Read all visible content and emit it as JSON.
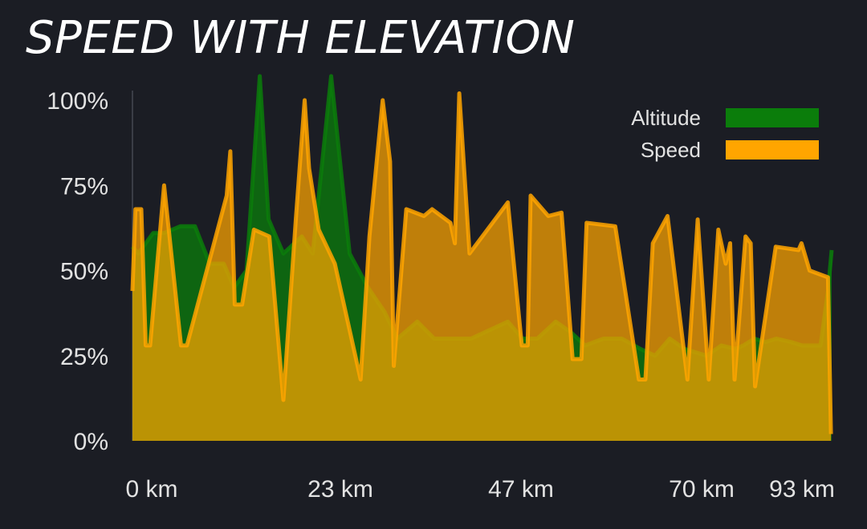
{
  "chart_data": {
    "type": "area",
    "title": "SPEED WITH ELEVATION",
    "y_ticks": [
      "0%",
      "25%",
      "50%",
      "75%",
      "100%"
    ],
    "x_ticks": [
      "0 km",
      "23 km",
      "47 km",
      "70 km",
      "93 km"
    ],
    "ylim": [
      0,
      100
    ],
    "xlim": [
      0,
      95
    ],
    "legend_position": "top-right",
    "series": [
      {
        "name": "Altitude",
        "color": "#0b7d0b",
        "x": [
          0,
          0.8,
          2.8,
          4.3,
          6.5,
          8.5,
          10.5,
          12.4,
          13.8,
          15.5,
          17.3,
          18.5,
          20.5,
          23.0,
          24.5,
          27.0,
          29.5,
          32.0,
          34.2,
          36.0,
          38.7,
          41.0,
          44.0,
          46.0,
          48.0,
          51.0,
          53.0,
          55.0,
          57.5,
          59.5,
          61.5,
          64.0,
          66.5,
          69.0,
          71.0,
          73.0,
          75.0,
          78.0,
          80.0,
          82.0,
          83.0,
          84.5,
          86.0,
          87.5,
          89.5,
          91.0,
          93.5,
          94.5,
          95.0
        ],
        "values": [
          57,
          55,
          61,
          61,
          63,
          63,
          52,
          52,
          45,
          50,
          110,
          65,
          55,
          60,
          55,
          110,
          55,
          45,
          38,
          30,
          35,
          30,
          30,
          30,
          32,
          35,
          30,
          30,
          35,
          32,
          28,
          30,
          30,
          27,
          25,
          30,
          27,
          25,
          28,
          27,
          28,
          30,
          29,
          30,
          29,
          28,
          28,
          44,
          56
        ]
      },
      {
        "name": "Speed",
        "color": "#ffa500",
        "x": [
          0,
          0.4,
          1.2,
          1.8,
          2.4,
          4.3,
          6.6,
          7.4,
          12.8,
          13.3,
          13.9,
          14.9,
          16.5,
          18.6,
          20.5,
          22.2,
          23.4,
          24.0,
          25.3,
          27.5,
          31.0,
          32.2,
          34.0,
          35.0,
          35.5,
          37.2,
          39.6,
          40.7,
          43.2,
          43.8,
          44.4,
          45.8,
          51.0,
          52.9,
          53.7,
          54.1,
          56.5,
          58.3,
          59.8,
          61.0,
          61.7,
          65.6,
          68.8,
          69.7,
          70.7,
          72.7,
          75.4,
          76.8,
          78.3,
          79.6,
          80.6,
          81.2,
          81.8,
          83.3,
          84.0,
          84.6,
          87.4,
          90.5,
          90.9,
          92.0,
          94.5,
          94.9
        ],
        "values": [
          44,
          68,
          68,
          28,
          28,
          75,
          28,
          28,
          72,
          85,
          40,
          40,
          62,
          60,
          12,
          65,
          100,
          80,
          62,
          52,
          18,
          60,
          100,
          82,
          22,
          68,
          66,
          68,
          64,
          58,
          102,
          55,
          70,
          28,
          28,
          72,
          66,
          67,
          24,
          24,
          64,
          63,
          18,
          18,
          58,
          66,
          18,
          65,
          18,
          62,
          52,
          58,
          18,
          60,
          58,
          16,
          57,
          56,
          58,
          50,
          48,
          2
        ]
      }
    ]
  }
}
